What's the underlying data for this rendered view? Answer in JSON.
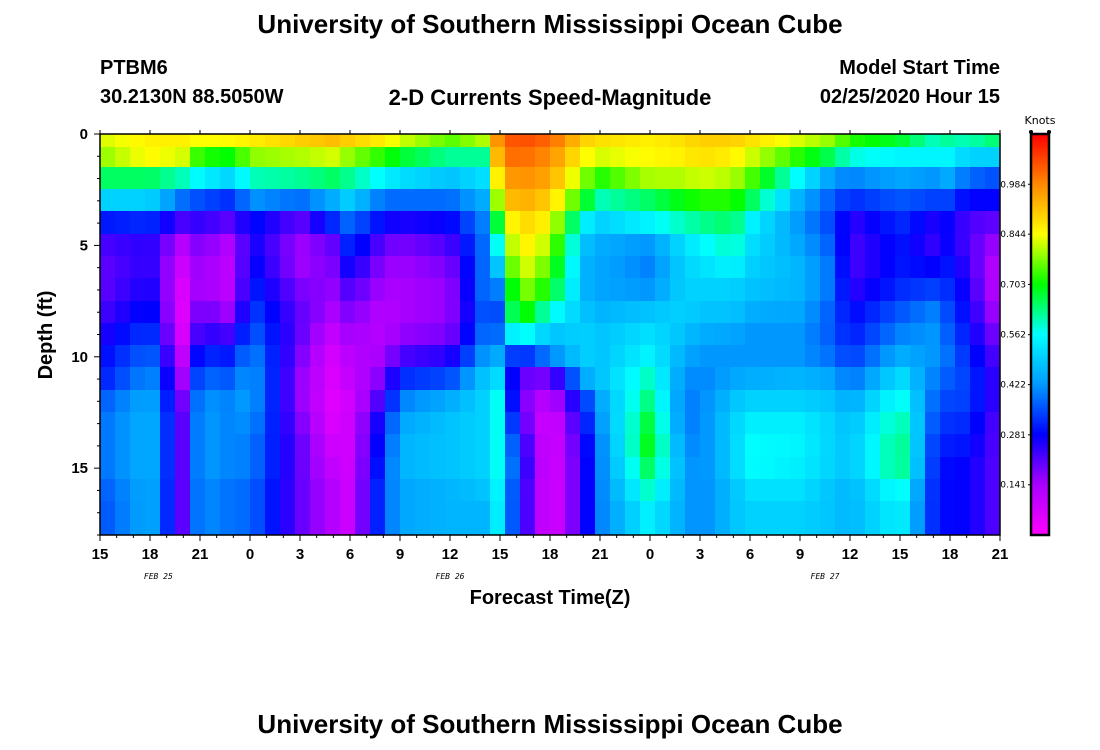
{
  "header": {
    "title": "University of Southern Mississippi Ocean Cube",
    "station": "PTBM6",
    "coords": "30.2130N 88.5050W",
    "model_label": "Model Start Time",
    "subtitle": "2-D Currents Speed-Magnitude",
    "start_time": "02/25/2020 Hour 15"
  },
  "footer": {
    "title": "University of Southern Mississippi Ocean Cube"
  },
  "colors": {
    "colormap": [
      "#ff00ff",
      "#aa00ff",
      "#0000ff",
      "#0099ff",
      "#00ffff",
      "#00ff00",
      "#ffff00",
      "#ff8800",
      "#ff0000"
    ],
    "frame": "#000000"
  },
  "chart_data": {
    "type": "heatmap",
    "title": "2-D Currents Speed-Magnitude",
    "xlabel": "Forecast Time(Z)",
    "ylabel": "Depth (ft)",
    "x_hours": [
      0,
      54
    ],
    "x_tick_hours": [
      0,
      3,
      6,
      9,
      12,
      15,
      18,
      21,
      24,
      27,
      30,
      33,
      36,
      39,
      42,
      45,
      48,
      51,
      54
    ],
    "x_tick_labels": [
      "15",
      "18",
      "21",
      "0",
      "3",
      "6",
      "9",
      "12",
      "15",
      "18",
      "21",
      "0",
      "3",
      "6",
      "9",
      "12",
      "15",
      "18",
      "21"
    ],
    "date_labels": [
      {
        "hour": 3.5,
        "text": "FEB 25"
      },
      {
        "hour": 21,
        "text": "FEB 26"
      },
      {
        "hour": 43.5,
        "text": "FEB 27"
      }
    ],
    "ylim": [
      0,
      18
    ],
    "y_ticks": [
      0,
      5,
      10,
      15
    ],
    "y_tick_labels": [
      "0",
      "5",
      "10",
      "15"
    ],
    "colorbar": {
      "unit": "Knots",
      "range": [
        0,
        1.125
      ],
      "ticks": [
        0.984,
        0.844,
        0.703,
        0.562,
        0.422,
        0.281,
        0.141
      ],
      "tick_labels": [
        "0.984",
        "0.844",
        "0.703",
        "0.562",
        "0.422",
        "0.281",
        "0.141"
      ]
    },
    "depth_levels": [
      0.25,
      1,
      2,
      3,
      4,
      5,
      6,
      7,
      8,
      9,
      10,
      11,
      12,
      13,
      14,
      15,
      16,
      17,
      17.75
    ],
    "anchor_hours": [
      0,
      3,
      5,
      6,
      8,
      9,
      12,
      14,
      15,
      17,
      18,
      21,
      23,
      24,
      25,
      27,
      29,
      30,
      33,
      35,
      36,
      38,
      39,
      42,
      44,
      45,
      48,
      50,
      51,
      52,
      54
    ],
    "speed_profiles": [
      [
        0.82,
        0.78,
        0.65,
        0.5,
        0.3,
        0.22,
        0.2,
        0.2,
        0.22,
        0.25,
        0.28,
        0.3,
        0.36,
        0.38,
        0.38,
        0.38,
        0.36,
        0.35,
        0.35
      ],
      [
        0.86,
        0.85,
        0.65,
        0.5,
        0.32,
        0.25,
        0.25,
        0.27,
        0.3,
        0.34,
        0.38,
        0.42,
        0.45,
        0.46,
        0.46,
        0.46,
        0.45,
        0.45,
        0.45
      ],
      [
        0.86,
        0.82,
        0.6,
        0.38,
        0.22,
        0.12,
        0.08,
        0.06,
        0.05,
        0.06,
        0.1,
        0.14,
        0.18,
        0.2,
        0.2,
        0.2,
        0.2,
        0.2,
        0.2
      ],
      [
        0.84,
        0.72,
        0.55,
        0.35,
        0.24,
        0.18,
        0.16,
        0.16,
        0.2,
        0.25,
        0.32,
        0.38,
        0.42,
        0.43,
        0.43,
        0.43,
        0.42,
        0.42,
        0.42
      ],
      [
        0.85,
        0.7,
        0.5,
        0.32,
        0.2,
        0.12,
        0.1,
        0.1,
        0.14,
        0.22,
        0.3,
        0.36,
        0.4,
        0.4,
        0.4,
        0.4,
        0.38,
        0.38,
        0.38
      ],
      [
        0.86,
        0.78,
        0.6,
        0.42,
        0.3,
        0.28,
        0.3,
        0.32,
        0.35,
        0.38,
        0.42,
        0.44,
        0.44,
        0.42,
        0.4,
        0.4,
        0.38,
        0.38,
        0.38
      ],
      [
        0.9,
        0.8,
        0.62,
        0.38,
        0.2,
        0.15,
        0.15,
        0.18,
        0.2,
        0.2,
        0.18,
        0.16,
        0.16,
        0.18,
        0.2,
        0.2,
        0.2,
        0.2,
        0.2
      ],
      [
        0.92,
        0.82,
        0.65,
        0.45,
        0.32,
        0.2,
        0.18,
        0.16,
        0.14,
        0.1,
        0.07,
        0.06,
        0.05,
        0.06,
        0.08,
        0.1,
        0.12,
        0.12,
        0.12
      ],
      [
        0.9,
        0.78,
        0.62,
        0.5,
        0.38,
        0.33,
        0.28,
        0.22,
        0.18,
        0.15,
        0.12,
        0.1,
        0.08,
        0.08,
        0.08,
        0.08,
        0.08,
        0.08,
        0.08
      ],
      [
        0.86,
        0.72,
        0.55,
        0.38,
        0.28,
        0.2,
        0.16,
        0.14,
        0.12,
        0.12,
        0.14,
        0.18,
        0.24,
        0.3,
        0.32,
        0.34,
        0.36,
        0.36,
        0.36
      ],
      [
        0.82,
        0.68,
        0.52,
        0.38,
        0.26,
        0.18,
        0.15,
        0.14,
        0.14,
        0.16,
        0.22,
        0.32,
        0.4,
        0.44,
        0.46,
        0.46,
        0.44,
        0.44,
        0.44
      ],
      [
        0.75,
        0.62,
        0.48,
        0.38,
        0.28,
        0.22,
        0.18,
        0.16,
        0.16,
        0.18,
        0.25,
        0.35,
        0.45,
        0.48,
        0.48,
        0.48,
        0.46,
        0.46,
        0.46
      ],
      [
        0.8,
        0.62,
        0.52,
        0.45,
        0.4,
        0.38,
        0.38,
        0.38,
        0.36,
        0.38,
        0.42,
        0.48,
        0.5,
        0.5,
        0.5,
        0.5,
        0.48,
        0.46,
        0.46
      ],
      [
        1.0,
        0.98,
        0.92,
        0.85,
        0.72,
        0.6,
        0.5,
        0.4,
        0.35,
        0.38,
        0.45,
        0.52,
        0.58,
        0.58,
        0.58,
        0.58,
        0.56,
        0.55,
        0.55
      ],
      [
        1.05,
        1.02,
        0.98,
        0.95,
        0.9,
        0.88,
        0.85,
        0.8,
        0.76,
        0.6,
        0.3,
        0.2,
        0.2,
        0.25,
        0.3,
        0.32,
        0.3,
        0.3,
        0.3
      ],
      [
        1.02,
        0.98,
        0.95,
        0.9,
        0.85,
        0.8,
        0.75,
        0.7,
        0.58,
        0.48,
        0.4,
        0.18,
        0.1,
        0.05,
        0.05,
        0.05,
        0.05,
        0.05,
        0.05
      ],
      [
        0.9,
        0.85,
        0.78,
        0.7,
        0.55,
        0.48,
        0.46,
        0.46,
        0.48,
        0.5,
        0.5,
        0.44,
        0.32,
        0.28,
        0.25,
        0.24,
        0.24,
        0.24,
        0.24
      ],
      [
        0.88,
        0.82,
        0.72,
        0.6,
        0.5,
        0.45,
        0.44,
        0.44,
        0.46,
        0.48,
        0.48,
        0.48,
        0.44,
        0.42,
        0.4,
        0.4,
        0.4,
        0.4,
        0.4
      ],
      [
        0.86,
        0.85,
        0.8,
        0.65,
        0.55,
        0.42,
        0.4,
        0.42,
        0.48,
        0.52,
        0.55,
        0.6,
        0.64,
        0.68,
        0.7,
        0.66,
        0.6,
        0.55,
        0.55
      ],
      [
        0.88,
        0.86,
        0.8,
        0.7,
        0.6,
        0.52,
        0.5,
        0.5,
        0.5,
        0.48,
        0.45,
        0.42,
        0.4,
        0.4,
        0.42,
        0.44,
        0.44,
        0.44,
        0.44
      ],
      [
        0.9,
        0.88,
        0.82,
        0.72,
        0.62,
        0.55,
        0.52,
        0.5,
        0.48,
        0.45,
        0.42,
        0.4,
        0.4,
        0.4,
        0.4,
        0.4,
        0.4,
        0.4,
        0.4
      ],
      [
        0.9,
        0.86,
        0.8,
        0.72,
        0.65,
        0.6,
        0.55,
        0.5,
        0.48,
        0.44,
        0.42,
        0.44,
        0.48,
        0.5,
        0.5,
        0.5,
        0.48,
        0.48,
        0.48
      ],
      [
        0.88,
        0.82,
        0.75,
        0.66,
        0.55,
        0.52,
        0.5,
        0.48,
        0.45,
        0.42,
        0.42,
        0.45,
        0.5,
        0.54,
        0.56,
        0.56,
        0.52,
        0.5,
        0.5
      ],
      [
        0.82,
        0.72,
        0.55,
        0.45,
        0.42,
        0.44,
        0.46,
        0.46,
        0.44,
        0.42,
        0.42,
        0.46,
        0.5,
        0.54,
        0.55,
        0.54,
        0.52,
        0.5,
        0.5
      ],
      [
        0.78,
        0.65,
        0.42,
        0.36,
        0.34,
        0.36,
        0.38,
        0.38,
        0.36,
        0.36,
        0.38,
        0.44,
        0.48,
        0.5,
        0.5,
        0.5,
        0.48,
        0.48,
        0.48
      ],
      [
        0.72,
        0.58,
        0.4,
        0.32,
        0.24,
        0.22,
        0.22,
        0.24,
        0.28,
        0.3,
        0.33,
        0.38,
        0.44,
        0.47,
        0.48,
        0.48,
        0.46,
        0.46,
        0.46
      ],
      [
        0.68,
        0.55,
        0.44,
        0.36,
        0.32,
        0.3,
        0.3,
        0.32,
        0.36,
        0.4,
        0.45,
        0.52,
        0.58,
        0.62,
        0.64,
        0.64,
        0.58,
        0.55,
        0.55
      ],
      [
        0.6,
        0.55,
        0.42,
        0.34,
        0.26,
        0.24,
        0.28,
        0.34,
        0.4,
        0.42,
        0.42,
        0.4,
        0.38,
        0.36,
        0.34,
        0.33,
        0.32,
        0.32,
        0.32
      ],
      [
        0.62,
        0.55,
        0.45,
        0.34,
        0.28,
        0.28,
        0.3,
        0.32,
        0.34,
        0.36,
        0.38,
        0.36,
        0.34,
        0.32,
        0.3,
        0.28,
        0.28,
        0.28,
        0.28
      ],
      [
        0.6,
        0.5,
        0.38,
        0.28,
        0.22,
        0.22,
        0.24,
        0.26,
        0.28,
        0.3,
        0.32,
        0.34,
        0.34,
        0.32,
        0.3,
        0.28,
        0.28,
        0.28,
        0.28
      ],
      [
        0.65,
        0.5,
        0.35,
        0.28,
        0.2,
        0.14,
        0.1,
        0.1,
        0.12,
        0.16,
        0.2,
        0.22,
        0.22,
        0.2,
        0.2,
        0.2,
        0.2,
        0.2,
        0.2
      ]
    ]
  }
}
